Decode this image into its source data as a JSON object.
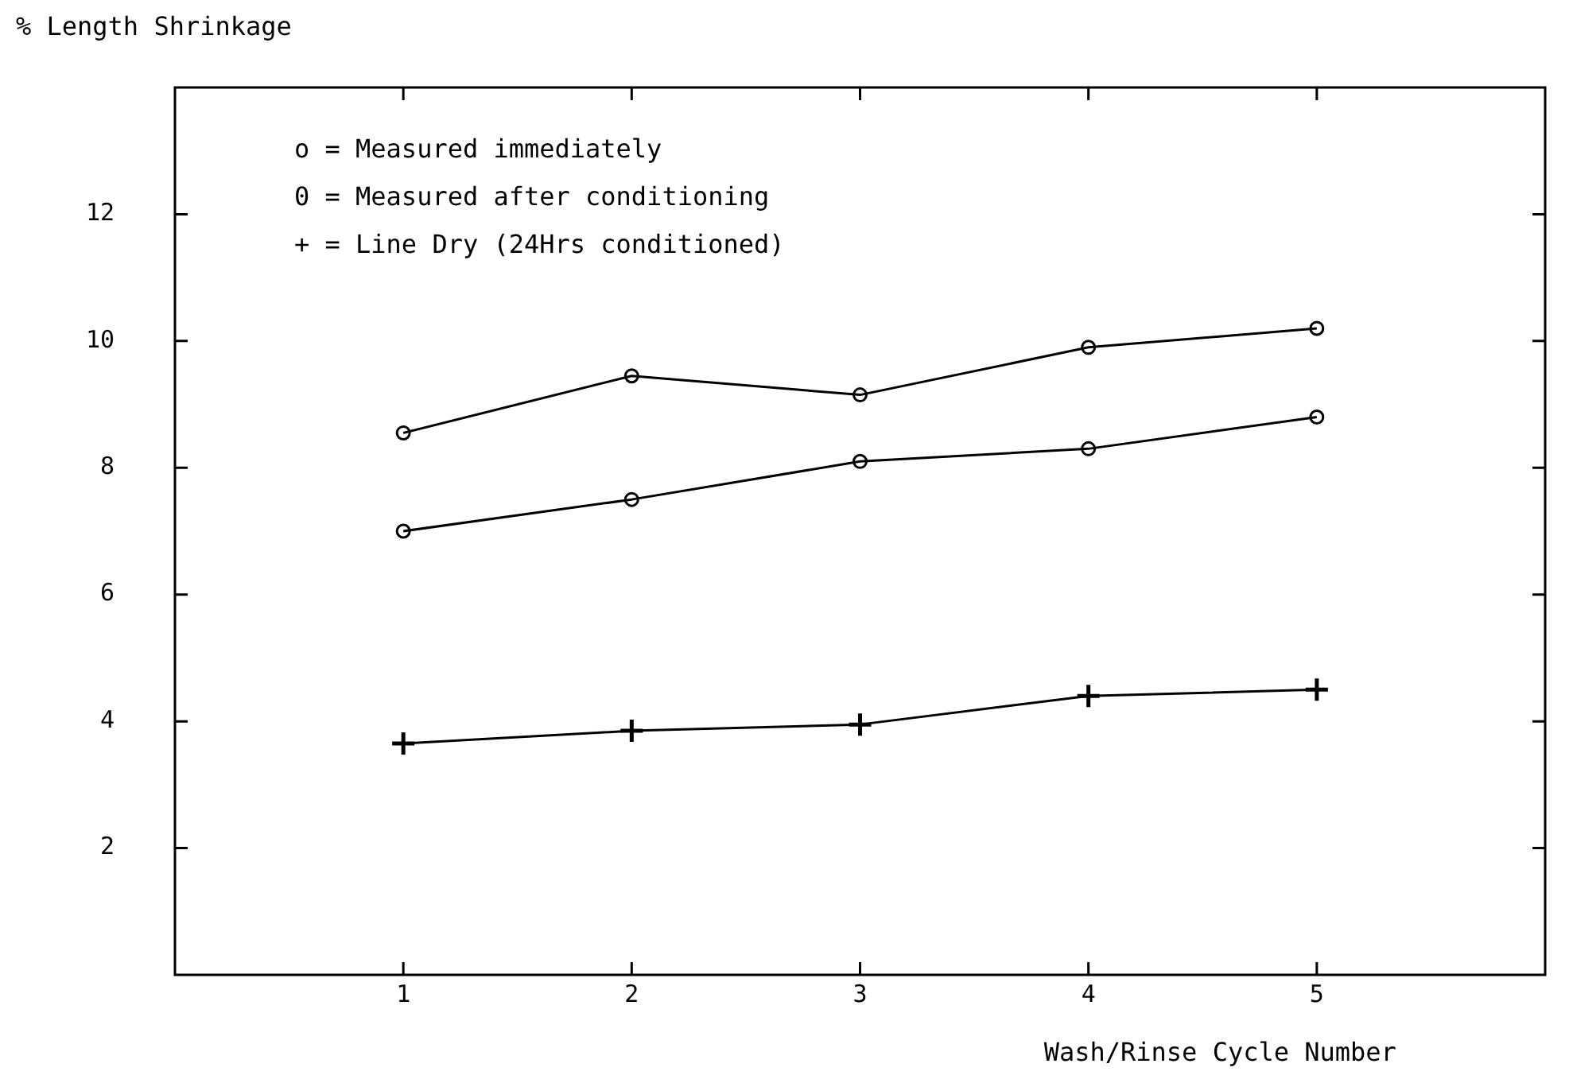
{
  "chart_data": {
    "type": "line",
    "ylabel": "% Length Shrinkage",
    "xlabel": "Wash/Rinse Cycle Number",
    "x": [
      1,
      2,
      3,
      4,
      5
    ],
    "series": [
      {
        "values": [
          8.55,
          9.45,
          9.15,
          9.9,
          10.2
        ],
        "color": "#000000",
        "marker": "circle"
      },
      {
        "values": [
          7.0,
          7.5,
          8.1,
          8.3,
          8.8
        ],
        "color": "#000000",
        "marker": "circle"
      },
      {
        "values": [
          3.65,
          3.85,
          3.95,
          4.4,
          4.5
        ],
        "color": "#000000",
        "marker": "cross"
      }
    ],
    "xlim": [
      0,
      6
    ],
    "xticks": [
      1,
      2,
      3,
      4,
      5
    ],
    "ylim": [
      0,
      14
    ],
    "yticks": [
      2,
      4,
      6,
      8,
      10,
      12
    ],
    "annotations": [
      "o = Measured immediately",
      "0 = Measured after conditioning",
      "+ = Line Dry (24Hrs conditioned)"
    ],
    "grid": false,
    "legend": false
  }
}
